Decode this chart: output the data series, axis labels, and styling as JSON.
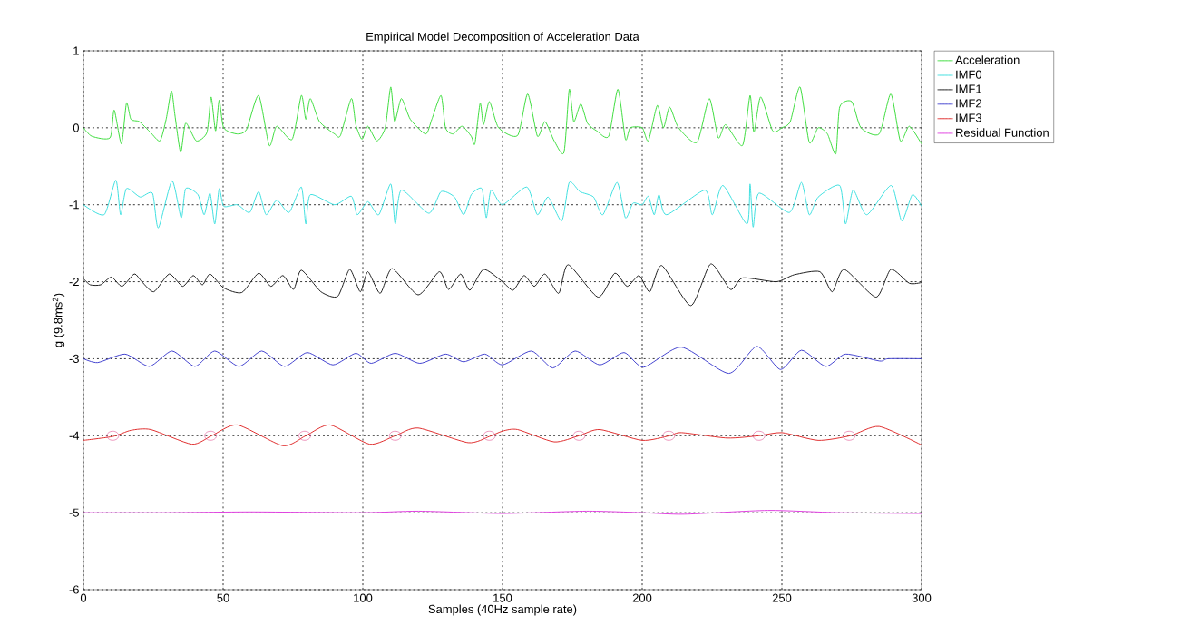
{
  "chart_data": {
    "type": "line",
    "title": "Empirical Model Decomposition of Acceleration Data",
    "xlabel": "Samples (40Hz sample rate)",
    "ylabel": "g (9.8ms$^{2}$)",
    "xlim": [
      0,
      300
    ],
    "ylim": [
      -6,
      1
    ],
    "xticks": [
      0,
      50,
      100,
      150,
      200,
      250,
      300
    ],
    "yticks": [
      -6,
      -5,
      -4,
      -3,
      -2,
      -1,
      0,
      1
    ],
    "grid": true,
    "legend": "top right",
    "series": [
      {
        "name": "Acceleration",
        "color": "#40dd40",
        "x": [
          0,
          3,
          9.5,
          11,
          13.6,
          15.4,
          17,
          20,
          24,
          27.4,
          29.6,
          31.5,
          32.8,
          34.8,
          36.6,
          40.4,
          44.2,
          45.7,
          47.3,
          48.6,
          50.2,
          55,
          58.4,
          62.7,
          66.5,
          69.2,
          74.7,
          78,
          79.6,
          81.2,
          84.5,
          89.9,
          92,
          95.9,
          97.5,
          99.7,
          101.8,
          105,
          108,
          110,
          111.4,
          113.8,
          117,
          122.5,
          124.7,
          128,
          129.6,
          132.3,
          135.5,
          138.8,
          140.1,
          142,
          143.2,
          145.3,
          148.6,
          155.4,
          159,
          162.5,
          165.2,
          168.5,
          172,
          173.9,
          175.5,
          178,
          180.4,
          183.7,
          188,
          191.3,
          194,
          195.7,
          200,
          202.2,
          205.4,
          207.6,
          209.8,
          213,
          219.6,
          224,
          227.2,
          229.9,
          235.9,
          238.6,
          240,
          242.4,
          246.7,
          250,
          253,
          256.5,
          259.8,
          263,
          266.3,
          269.3,
          270.7,
          275,
          278.3,
          284.8,
          289,
          292.4,
          295.6,
          300
        ],
        "values": [
          0,
          -0.11,
          -0.13,
          0.23,
          -0.21,
          0.32,
          0.11,
          0.08,
          -0.06,
          -0.17,
          0.11,
          0.48,
          0.15,
          -0.32,
          0.06,
          -0.17,
          -0.06,
          0.4,
          -0.04,
          0.36,
          0,
          -0.08,
          -0.02,
          0.42,
          -0.23,
          0.02,
          -0.15,
          0.42,
          0.11,
          0.38,
          0.08,
          -0.08,
          -0.1,
          0.38,
          0.04,
          -0.15,
          0.02,
          -0.17,
          0,
          0.53,
          0.08,
          0.38,
          0.11,
          -0.08,
          0.11,
          0.42,
          0,
          -0.08,
          0.02,
          -0.11,
          -0.21,
          0.32,
          0.04,
          0.34,
          0,
          -0.1,
          0.44,
          -0.11,
          0.08,
          -0.17,
          -0.32,
          0.5,
          0.08,
          0.31,
          0.06,
          -0.04,
          -0.11,
          0.5,
          -0.15,
          0,
          0,
          -0.17,
          0.29,
          0,
          0.27,
          0,
          -0.19,
          0.38,
          -0.13,
          0.04,
          -0.23,
          0.42,
          -0.06,
          0.4,
          -0.04,
          0,
          0.08,
          0.53,
          -0.19,
          0,
          -0.08,
          -0.34,
          0.27,
          0.34,
          0,
          -0.08,
          0.44,
          -0.17,
          0.02,
          -0.21
        ]
      },
      {
        "name": "IMF0",
        "color": "#40e0e0",
        "x": [
          0,
          7.4,
          11.6,
          13.3,
          15.4,
          20.3,
          24.7,
          26.8,
          31.7,
          35,
          36.6,
          41,
          43.2,
          45.3,
          47,
          48.6,
          50.2,
          55.1,
          59.5,
          62.7,
          65.4,
          69.2,
          73.6,
          78,
          79.6,
          81.2,
          89.9,
          95.9,
          98,
          101.8,
          105.7,
          110,
          111.6,
          113.8,
          123.6,
          128,
          132.8,
          136.1,
          138.8,
          142.6,
          144.2,
          145.9,
          150,
          158.7,
          162.5,
          166.3,
          171.2,
          173.9,
          177.7,
          182.6,
          185.9,
          191,
          194,
          196.7,
          200,
          202.2,
          204.3,
          206,
          208.7,
          222.4,
          225.1,
          228.9,
          237.5,
          238.6,
          239.7,
          241.8,
          252.7,
          257,
          259.8,
          263,
          270.7,
          272.8,
          275.5,
          280.4,
          289.1,
          292.9,
          296.7,
          300
        ],
        "values": [
          -1,
          -1.13,
          -0.68,
          -1.13,
          -0.79,
          -0.9,
          -0.85,
          -1.3,
          -0.69,
          -1.17,
          -0.79,
          -0.87,
          -1.13,
          -0.85,
          -1.25,
          -0.79,
          -1.02,
          -1,
          -1.1,
          -0.83,
          -1.13,
          -0.94,
          -1.1,
          -0.77,
          -1.25,
          -0.87,
          -1,
          -0.89,
          -1.13,
          -0.96,
          -1.13,
          -0.73,
          -1.25,
          -0.81,
          -1.11,
          -0.83,
          -0.9,
          -1.13,
          -0.87,
          -0.79,
          -1.17,
          -0.81,
          -1,
          -0.77,
          -1.13,
          -0.9,
          -1.21,
          -0.71,
          -0.83,
          -0.9,
          -1.13,
          -0.71,
          -1.17,
          -0.98,
          -1,
          -0.89,
          -1.13,
          -0.87,
          -1.13,
          -0.81,
          -1.13,
          -0.75,
          -1.25,
          -0.73,
          -1.29,
          -0.85,
          -1.1,
          -0.71,
          -1.13,
          -0.9,
          -0.75,
          -1.25,
          -0.81,
          -1.13,
          -0.75,
          -1.21,
          -0.87,
          -1.02
        ]
      },
      {
        "name": "IMF1",
        "color": "#202020",
        "x": [
          0,
          2.4,
          6.2,
          10,
          13.8,
          18.2,
          20.9,
          25.2,
          30.7,
          35.5,
          39.3,
          42.6,
          45.3,
          50.2,
          56.7,
          62.7,
          67.1,
          71.4,
          75.2,
          78,
          85,
          91,
          95.3,
          99.1,
          101.8,
          106.2,
          110.5,
          119.8,
          127.4,
          130.7,
          135,
          138.3,
          143.2,
          150,
          153.8,
          157.7,
          161.4,
          165.2,
          170.1,
          173.5,
          184.2,
          190.2,
          194.6,
          198.9,
          202.7,
          207,
          217.4,
          224.5,
          231.6,
          236,
          248,
          254.4,
          263.6,
          268,
          272.3,
          283.7,
          289,
          295.6,
          300
        ],
        "values": [
          -1.96,
          -2.04,
          -2.04,
          -1.94,
          -2.06,
          -1.9,
          -2,
          -2.13,
          -1.9,
          -2.06,
          -1.92,
          -2.04,
          -1.9,
          -2.08,
          -2.14,
          -1.89,
          -2.06,
          -1.92,
          -2.1,
          -1.85,
          -2.13,
          -2.19,
          -1.84,
          -2.13,
          -1.87,
          -2.15,
          -1.83,
          -2.17,
          -1.87,
          -2.1,
          -1.9,
          -2.11,
          -1.84,
          -2,
          -2.11,
          -1.92,
          -2.06,
          -1.9,
          -2.15,
          -1.78,
          -2.2,
          -1.89,
          -2.06,
          -1.92,
          -2.13,
          -1.79,
          -2.31,
          -1.77,
          -2.1,
          -1.95,
          -2,
          -1.91,
          -1.87,
          -2.13,
          -1.84,
          -2.2,
          -1.84,
          -2.02,
          -2.01
        ]
      },
      {
        "name": "IMF2",
        "color": "#4444d0",
        "x": [
          0,
          5.1,
          14.9,
          23.6,
          31.7,
          39.9,
          47,
          55.7,
          63.8,
          72,
          80.1,
          89.3,
          97.5,
          103,
          111.6,
          120.4,
          129.6,
          136.1,
          143.7,
          150,
          160.3,
          168,
          176,
          184.8,
          193.5,
          200.5,
          214,
          231,
          241,
          249.5,
          257,
          265.7,
          272.8,
          285,
          288,
          300
        ],
        "values": [
          -3,
          -3.05,
          -2.94,
          -3.1,
          -2.9,
          -3.1,
          -2.9,
          -3.1,
          -2.9,
          -3.1,
          -2.92,
          -3.08,
          -2.93,
          -3.06,
          -2.93,
          -3.06,
          -2.94,
          -3.04,
          -2.94,
          -3.08,
          -2.9,
          -3.12,
          -2.9,
          -3.08,
          -2.92,
          -3.11,
          -2.85,
          -3.19,
          -2.84,
          -3.14,
          -2.89,
          -3.1,
          -2.94,
          -3.03,
          -3,
          -3
        ]
      },
      {
        "name": "IMF3",
        "color": "#e03030",
        "x": [
          0,
          10.5,
          17,
          24.1,
          38.8,
          45.9,
          55.1,
          71.4,
          79.6,
          88.3,
          102.4,
          111.6,
          119.8,
          137.7,
          145.3,
          150,
          155.4,
          168.5,
          177.4,
          184.8,
          200,
          209.8,
          214.1,
          230.4,
          241.8,
          250,
          263,
          274.5,
          284.8,
          300
        ],
        "values": [
          -4.06,
          -4.01,
          -3.93,
          -3.92,
          -4.11,
          -4,
          -3.86,
          -4.13,
          -4,
          -3.86,
          -4.11,
          -4,
          -3.9,
          -4.09,
          -4.01,
          -3.94,
          -3.92,
          -4.08,
          -4,
          -3.92,
          -4.06,
          -4,
          -3.96,
          -4.03,
          -4,
          -3.96,
          -4.06,
          -4,
          -3.88,
          -4.12
        ]
      },
      {
        "name": "Residual Function",
        "color": "#e040e0",
        "x": [
          0,
          30,
          60,
          100,
          120,
          150,
          180,
          200,
          215,
          245,
          270,
          300
        ],
        "values": [
          -5,
          -5,
          -4.99,
          -5,
          -4.98,
          -5.01,
          -4.98,
          -5,
          -5.02,
          -4.97,
          -5,
          -5.01
        ]
      },
      {
        "type": "scatter",
        "marker": "circle",
        "color": "#e05090",
        "x": [
          10.5,
          45.5,
          79.2,
          111.6,
          145.3,
          177.4,
          209.5,
          241.8,
          274.1
        ],
        "values": [
          -4,
          -4,
          -4,
          -4,
          -4,
          -4,
          -4,
          -4,
          -4
        ]
      }
    ]
  }
}
